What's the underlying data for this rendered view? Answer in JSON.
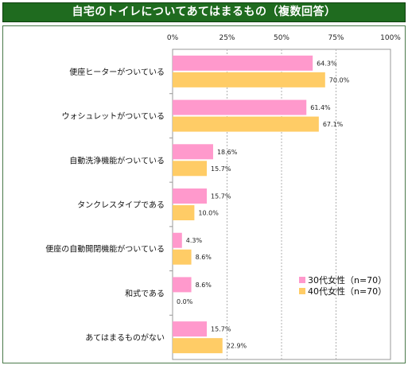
{
  "chart_data": {
    "type": "bar",
    "orientation": "horizontal",
    "title": "自宅のトイレについてあてはまるもの（複数回答）",
    "categories": [
      "便座ヒーターがついている",
      "ウォシュレットがついている",
      "自動洗浄機能がついている",
      "タンクレスタイプである",
      "便座の自動開閉機能がついている",
      "和式である",
      "あてはまるものがない"
    ],
    "series": [
      {
        "name": "30代女性（n=70）",
        "color": "#ff99cc",
        "values": [
          64.3,
          61.4,
          18.6,
          15.7,
          4.3,
          8.6,
          15.7
        ],
        "labels": [
          "64.3%",
          "61.4%",
          "18.6%",
          "15.7%",
          "4.3%",
          "8.6%",
          "15.7%"
        ]
      },
      {
        "name": "40代女性（n=70）",
        "color": "#ffcc66",
        "values": [
          70.0,
          67.1,
          15.7,
          10.0,
          8.6,
          0.0,
          22.9
        ],
        "labels": [
          "70.0%",
          "67.1%",
          "15.7%",
          "10.0%",
          "8.6%",
          "0.0%",
          "22.9%"
        ]
      }
    ],
    "xlim": [
      0,
      100
    ],
    "xticks": [
      "0%",
      "25%",
      "50%",
      "75%",
      "100%"
    ],
    "grid": true,
    "legend_position": "right"
  }
}
